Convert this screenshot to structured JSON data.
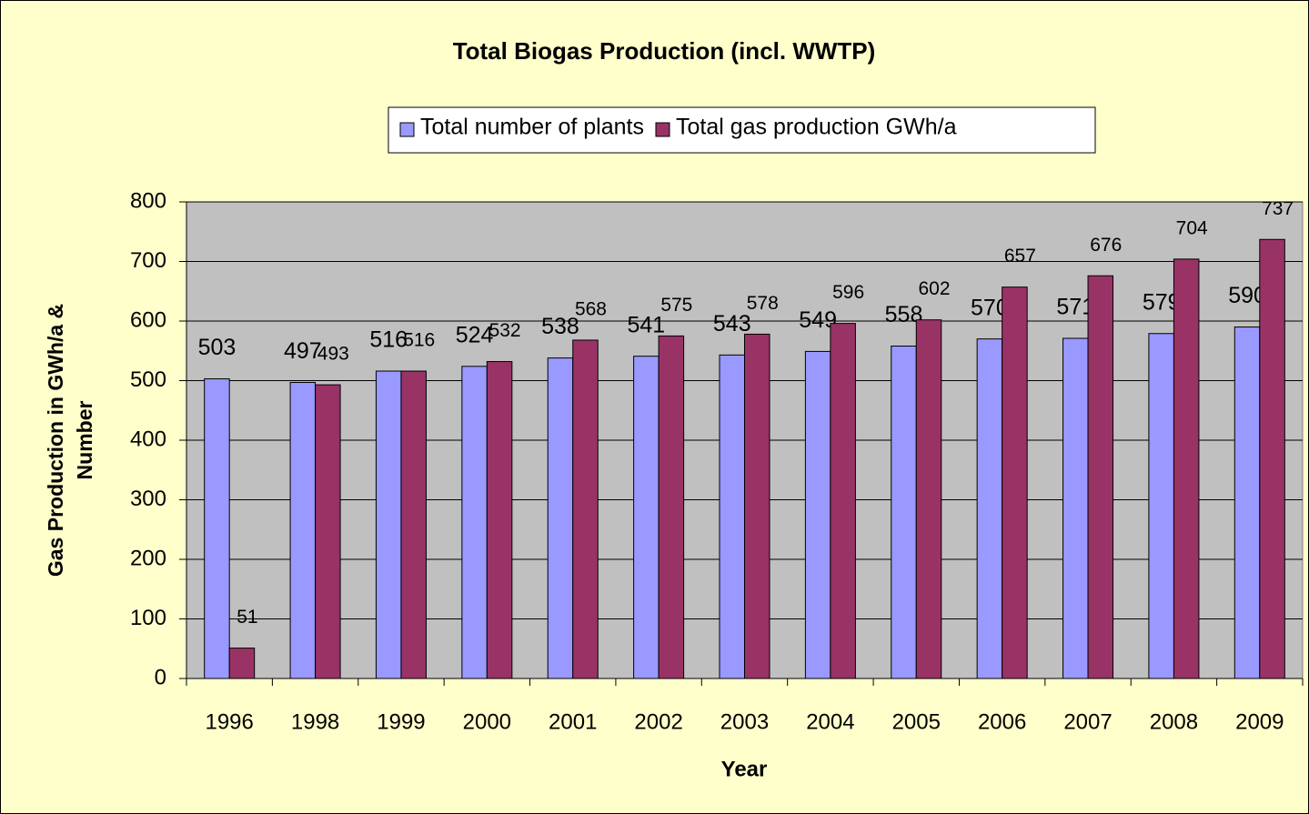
{
  "chart_data": {
    "type": "bar",
    "title": "Total Biogas Production (incl. WWTP)",
    "x_label": "Year",
    "y_label": [
      "Gas Production in GWh/a &",
      "Number"
    ],
    "categories": [
      "1996",
      "1998",
      "1999",
      "2000",
      "2001",
      "2002",
      "2003",
      "2004",
      "2005",
      "2006",
      "2007",
      "2008",
      "2009"
    ],
    "series": [
      {
        "name": "Total number of plants",
        "color": "#9999ff",
        "values": [
          503,
          497,
          516,
          524,
          538,
          541,
          543,
          549,
          558,
          570,
          571,
          579,
          590
        ]
      },
      {
        "name": "Total gas production GWh/a",
        "color": "#993366",
        "values": [
          51,
          493,
          516,
          532,
          568,
          575,
          578,
          596,
          602,
          657,
          676,
          704,
          737
        ]
      }
    ],
    "ylim": [
      0,
      800
    ],
    "yticks": [
      0,
      100,
      200,
      300,
      400,
      500,
      600,
      700,
      800
    ],
    "grid": true,
    "legend": "top"
  }
}
